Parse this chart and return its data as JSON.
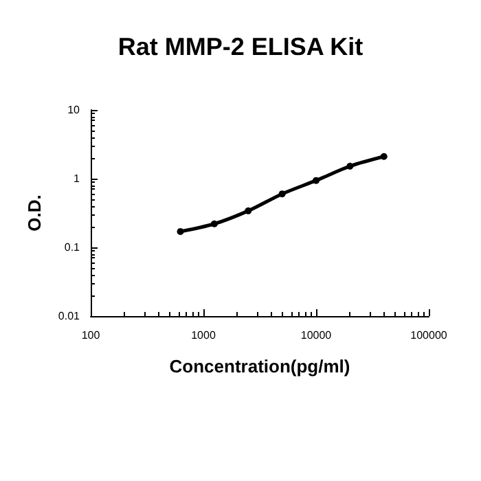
{
  "chart_data": {
    "type": "line",
    "title": "Rat MMP-2 ELISA Kit",
    "xlabel": "Concentration(pg/ml)",
    "ylabel": "O.D.",
    "x": [
      625,
      1250,
      2500,
      5000,
      10000,
      20000,
      40000
    ],
    "series": [
      {
        "color": "#000000",
        "values": [
          0.17,
          0.22,
          0.34,
          0.6,
          0.94,
          1.52,
          2.1
        ]
      }
    ],
    "log": "xy",
    "xlim": [
      100,
      100000
    ],
    "xticks": [
      100,
      1000,
      10000,
      100000
    ],
    "ylim": [
      0.01,
      10
    ],
    "yticks": [
      0.01,
      0.1,
      1,
      10
    ],
    "grid": false,
    "marker": "circle",
    "line_style": "solid"
  }
}
